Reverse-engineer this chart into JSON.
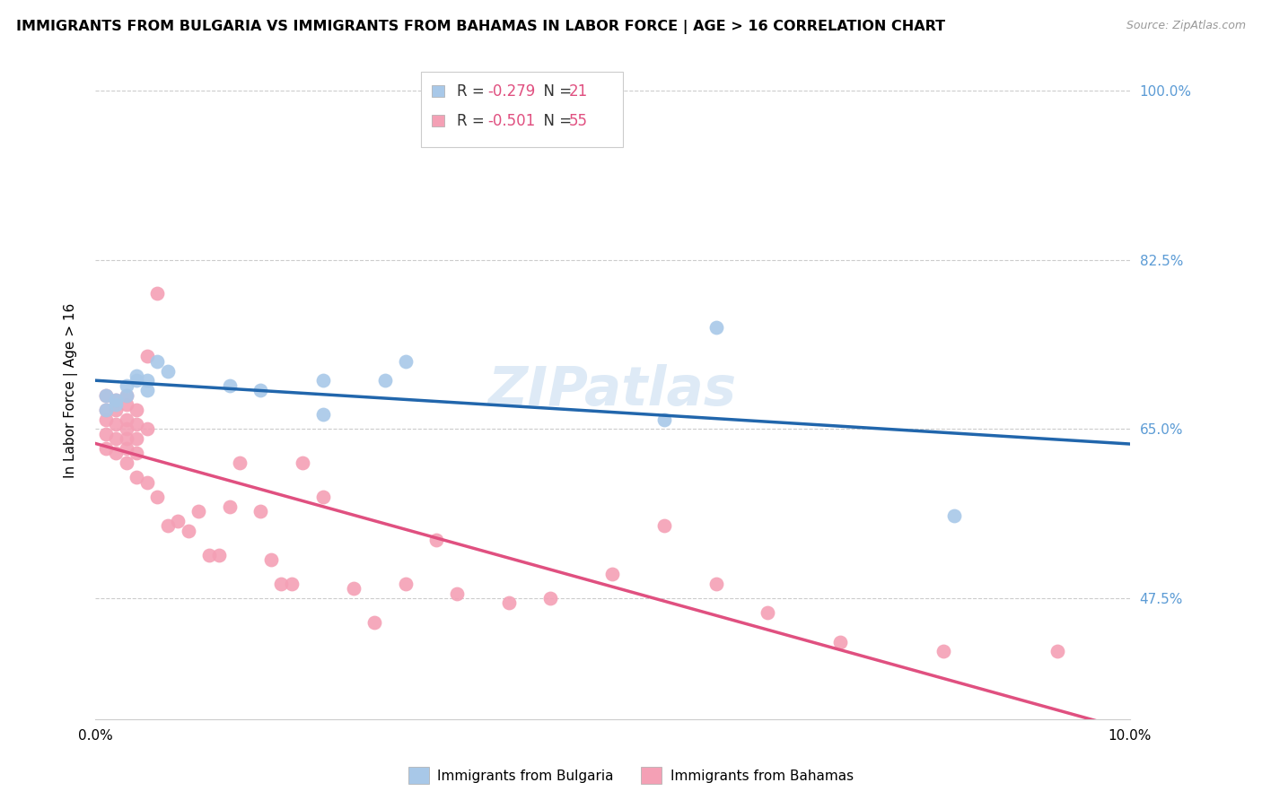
{
  "title": "IMMIGRANTS FROM BULGARIA VS IMMIGRANTS FROM BAHAMAS IN LABOR FORCE | AGE > 16 CORRELATION CHART",
  "source": "Source: ZipAtlas.com",
  "ylabel": "In Labor Force | Age > 16",
  "xlim": [
    0.0,
    0.1
  ],
  "ylim": [
    0.35,
    1.03
  ],
  "yticks": [
    0.475,
    0.65,
    0.825,
    1.0
  ],
  "ytick_labels": [
    "47.5%",
    "65.0%",
    "82.5%",
    "100.0%"
  ],
  "xticks": [
    0.0,
    0.02,
    0.04,
    0.06,
    0.08,
    0.1
  ],
  "xtick_labels": [
    "0.0%",
    "",
    "",
    "",
    "",
    "10.0%"
  ],
  "bulgaria_R": -0.279,
  "bulgaria_N": 21,
  "bahamas_R": -0.501,
  "bahamas_N": 55,
  "bulgaria_color": "#a8c8e8",
  "bahamas_color": "#f4a0b5",
  "bulgaria_line_color": "#2166ac",
  "bahamas_line_color": "#e05080",
  "watermark": "ZIPatlas",
  "bulgaria_x": [
    0.001,
    0.001,
    0.002,
    0.002,
    0.003,
    0.003,
    0.004,
    0.004,
    0.005,
    0.005,
    0.006,
    0.007,
    0.013,
    0.016,
    0.022,
    0.022,
    0.028,
    0.03,
    0.055,
    0.06,
    0.083
  ],
  "bulgaria_y": [
    0.685,
    0.67,
    0.68,
    0.675,
    0.695,
    0.685,
    0.7,
    0.705,
    0.7,
    0.69,
    0.72,
    0.71,
    0.695,
    0.69,
    0.7,
    0.665,
    0.7,
    0.72,
    0.66,
    0.755,
    0.56
  ],
  "bahamas_x": [
    0.001,
    0.001,
    0.001,
    0.001,
    0.001,
    0.002,
    0.002,
    0.002,
    0.002,
    0.002,
    0.003,
    0.003,
    0.003,
    0.003,
    0.003,
    0.003,
    0.003,
    0.004,
    0.004,
    0.004,
    0.004,
    0.004,
    0.005,
    0.005,
    0.005,
    0.006,
    0.006,
    0.007,
    0.008,
    0.009,
    0.01,
    0.011,
    0.012,
    0.013,
    0.014,
    0.016,
    0.017,
    0.018,
    0.019,
    0.02,
    0.022,
    0.025,
    0.027,
    0.03,
    0.033,
    0.035,
    0.04,
    0.044,
    0.05,
    0.055,
    0.06,
    0.065,
    0.072,
    0.082,
    0.093
  ],
  "bahamas_y": [
    0.685,
    0.67,
    0.66,
    0.645,
    0.63,
    0.68,
    0.67,
    0.655,
    0.64,
    0.625,
    0.685,
    0.675,
    0.66,
    0.65,
    0.64,
    0.63,
    0.615,
    0.67,
    0.655,
    0.64,
    0.625,
    0.6,
    0.725,
    0.65,
    0.595,
    0.58,
    0.79,
    0.55,
    0.555,
    0.545,
    0.565,
    0.52,
    0.52,
    0.57,
    0.615,
    0.565,
    0.515,
    0.49,
    0.49,
    0.615,
    0.58,
    0.485,
    0.45,
    0.49,
    0.535,
    0.48,
    0.47,
    0.475,
    0.5,
    0.55,
    0.49,
    0.46,
    0.43,
    0.42,
    0.42
  ]
}
